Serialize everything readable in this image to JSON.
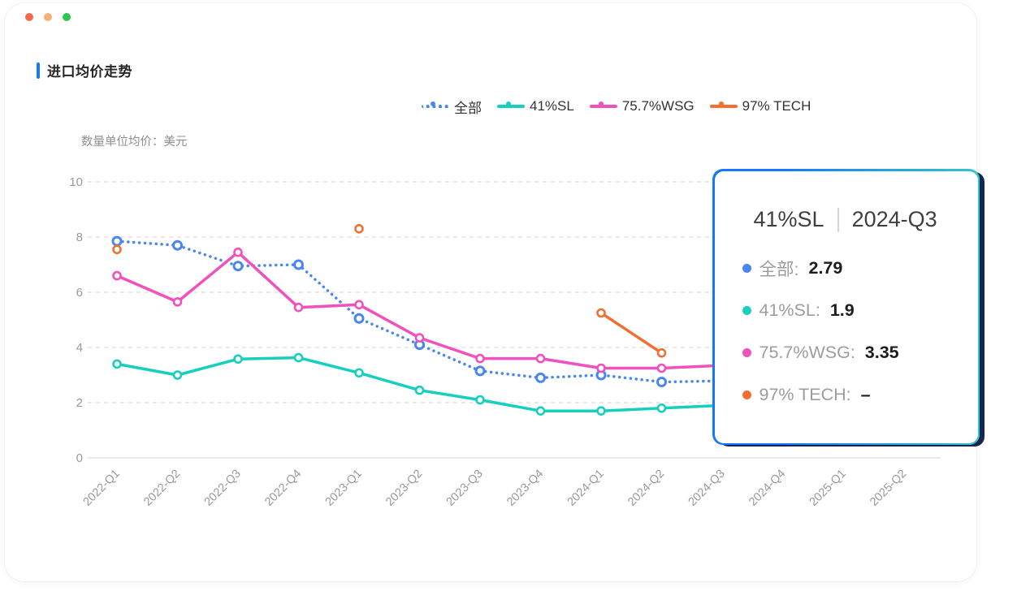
{
  "window": {
    "dot_colors": [
      "#F26B4E",
      "#F5B078",
      "#2FC64E"
    ]
  },
  "header": {
    "title": "进口均价走势",
    "accent_color": "#1677FF"
  },
  "chart_data": {
    "type": "line",
    "unit_label": "数量单位均价：美元",
    "categories": [
      "2022-Q1",
      "2022-Q2",
      "2022-Q3",
      "2022-Q4",
      "2023-Q1",
      "2023-Q2",
      "2023-Q3",
      "2023-Q4",
      "2024-Q1",
      "2024-Q2",
      "2024-Q3",
      "2024-Q4",
      "2025-Q1",
      "2025-Q2"
    ],
    "yticks": [
      0,
      2,
      4,
      6,
      8,
      10
    ],
    "ylim": [
      0,
      10
    ],
    "grid": "horizontal-dashed",
    "legend_position": "top",
    "series": [
      {
        "name": "全部",
        "color": "#4A86F0",
        "style": "dotted",
        "values": [
          7.85,
          7.7,
          6.95,
          7.0,
          5.05,
          4.1,
          3.15,
          2.9,
          3.0,
          2.75,
          2.79,
          null,
          null,
          null
        ]
      },
      {
        "name": "41%SL",
        "color": "#16CFBF",
        "style": "solid",
        "values": [
          3.4,
          3.0,
          3.58,
          3.63,
          3.08,
          2.45,
          2.1,
          1.7,
          1.7,
          1.8,
          1.9,
          null,
          null,
          null
        ]
      },
      {
        "name": "75.7%WSG",
        "color": "#F051BD",
        "style": "solid",
        "values": [
          6.6,
          5.65,
          7.45,
          5.45,
          5.55,
          4.35,
          3.6,
          3.6,
          3.25,
          3.25,
          3.35,
          null,
          null,
          null
        ]
      },
      {
        "name": "97% TECH",
        "color": "#F26F31",
        "style": "solid",
        "values": [
          7.55,
          null,
          null,
          null,
          8.3,
          null,
          null,
          null,
          5.25,
          3.8,
          null,
          null,
          null,
          null
        ]
      }
    ]
  },
  "tooltip": {
    "series_name": "41%SL",
    "category": "2024-Q3",
    "border_gradient": [
      "#1678F8",
      "#31C6CB"
    ],
    "shadow_color": "#17264F",
    "rows": [
      {
        "label": "全部:",
        "value": "2.79",
        "color": "#4A86F0"
      },
      {
        "label": "41%SL:",
        "value": "1.9",
        "color": "#16CFBF"
      },
      {
        "label": "75.7%WSG:",
        "value": "3.35",
        "color": "#F051BD"
      },
      {
        "label": "97% TECH:",
        "value": "–",
        "color": "#F26F31"
      }
    ]
  }
}
